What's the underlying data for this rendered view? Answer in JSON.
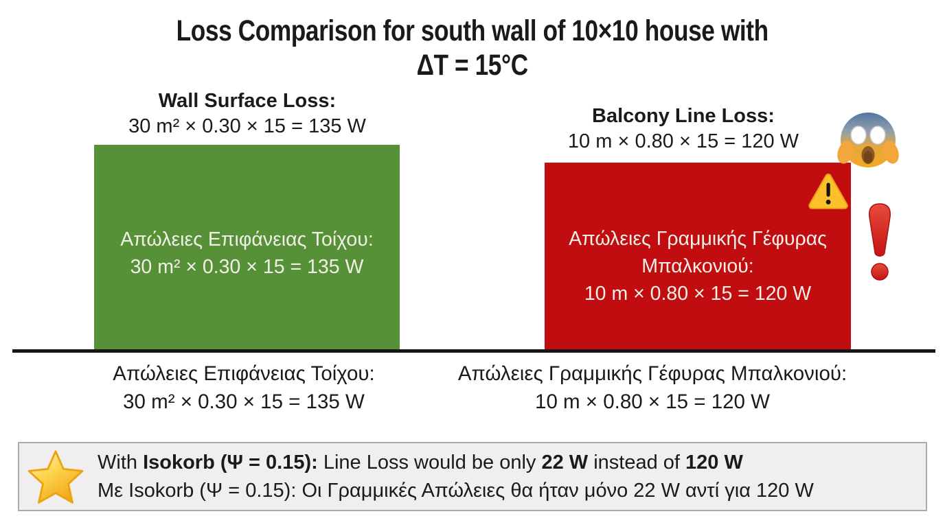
{
  "title": {
    "line1": "Loss Comparison for south wall of 10×10 house with",
    "line2": "ΔT = 15°C"
  },
  "wall": {
    "heading": "Wall Surface Loss:",
    "formula": "30 m² × 0.30 × 15 = 135 W",
    "bar_line1": "Απώλειες Επιφάνειας Τοίχου:",
    "bar_line2": "30 m² × 0.30 × 15 = 135 W",
    "axis_line1": "Απώλειες Επιφάνειας Τοίχου:",
    "axis_line2": "30 m² × 0.30 × 15 = 135 W"
  },
  "balcony": {
    "heading": "Balcony Line Loss:",
    "formula": "10 m × 0.80 × 15 = 120 W",
    "bar_line1": "Απώλειες Γραμμικής Γέφυρας",
    "bar_line2": "Μπαλκονιού:",
    "bar_line3": "10 m × 0.80 × 15 = 120 W",
    "axis_line1": "Απώλειες Γραμμικής Γέφυρας Μπαλκονιού:",
    "axis_line2": "10 m × 0.80 × 15 = 120 W"
  },
  "banner": {
    "line1_segments": [
      {
        "text": "With ",
        "bold": false
      },
      {
        "text": "Isokorb (Ψ = 0.15):",
        "bold": true
      },
      {
        "text": " Line Loss would be only ",
        "bold": false
      },
      {
        "text": "22 W",
        "bold": true
      },
      {
        "text": " instead of ",
        "bold": false
      },
      {
        "text": "120 W",
        "bold": true
      }
    ],
    "line2": "Με Isokorb (Ψ = 0.15): Οι Γραμμικές Απώλειες θα ήταν μόνο 22 W αντί για 120 W"
  },
  "icons": {
    "star": "star-emoji",
    "scream": "scream-face-emoji",
    "warning": "warning-sign-emoji",
    "exclamation": "red-exclamation-emoji"
  },
  "colors": {
    "wall_bar": "#569138",
    "balcony_bar": "#C20D10",
    "bar_text": "#F1EFE6",
    "baseline": "#161616",
    "banner_bg": "#F0EEEE",
    "banner_border": "#ABABAB"
  },
  "chart_data": {
    "type": "bar",
    "title": "Loss Comparison for south wall of 10×10 house with ΔT = 15°C",
    "categories": [
      "Wall Surface Loss (Απώλειες Επιφάνειας Τοίχου)",
      "Balcony Line Loss (Απώλειες Γραμμικής Γέφυρας Μπαλκονιού)"
    ],
    "values": [
      135,
      120
    ],
    "unit": "W",
    "formulas": [
      "30 m² × 0.30 × 15 = 135 W",
      "10 m × 0.80 × 15 = 120 W"
    ],
    "bar_colors": [
      "#569138",
      "#C20D10"
    ],
    "annotation_en": "With Isokorb (Ψ = 0.15): Line Loss would be only 22 W instead of 120 W",
    "annotation_el": "Με Isokorb (Ψ = 0.15): Οι Γραμμικές Απώλειες θα ήταν μόνο 22 W αντί για 120 W",
    "xlabel": "",
    "ylabel": "",
    "ylim": [
      0,
      150
    ],
    "grid": false,
    "legend": false
  }
}
